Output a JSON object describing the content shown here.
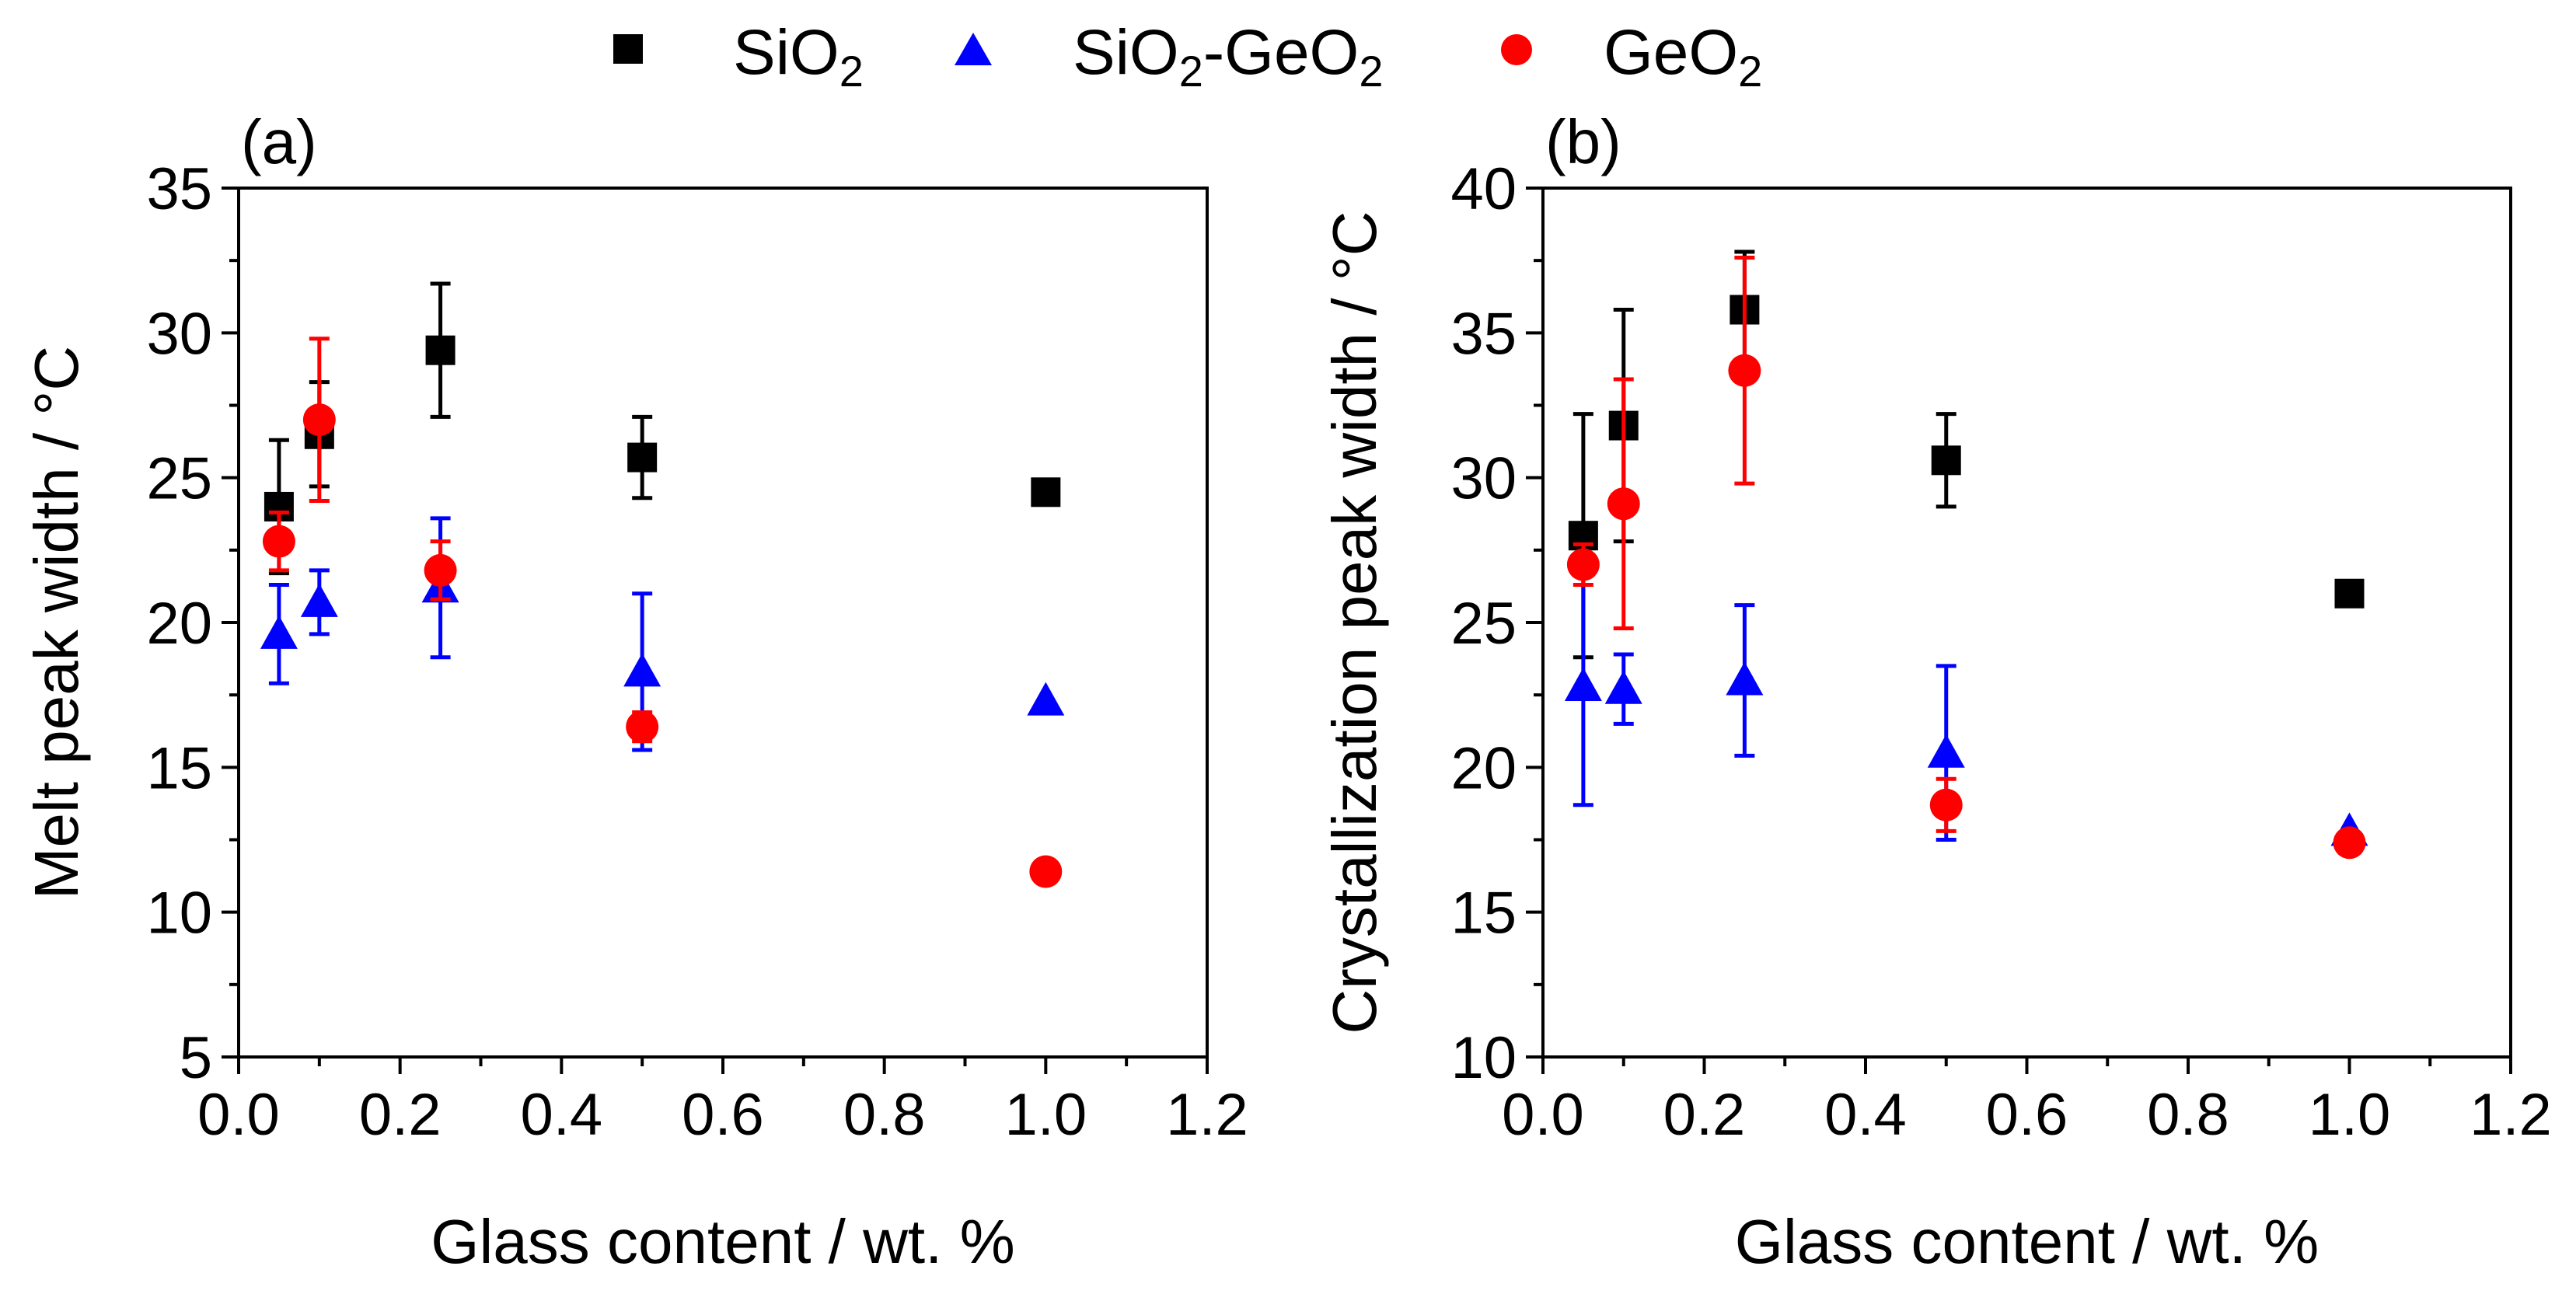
{
  "legend": {
    "entries": [
      {
        "key": "sio2",
        "base": "SiO",
        "sub": "2",
        "mid": "",
        "base2": "",
        "sub2": "",
        "marker": "square",
        "color": "#000000"
      },
      {
        "key": "mixed",
        "base": "SiO",
        "sub": "2",
        "mid": "-GeO",
        "base2": "",
        "sub2": "2",
        "marker": "triangle",
        "color": "#0000ff"
      },
      {
        "key": "geo2",
        "base": "GeO",
        "sub": "2",
        "mid": "",
        "base2": "",
        "sub2": "",
        "marker": "circle",
        "color": "#ff0000"
      }
    ]
  },
  "chart_data": [
    {
      "type": "scatter",
      "panel_label": "(a)",
      "xlabel": "Glass content / wt. %",
      "ylabel": "Melt peak width / °C",
      "xlim": [
        0.0,
        1.2
      ],
      "ylim": [
        5,
        35
      ],
      "xticks": [
        "0.0",
        "0.2",
        "0.4",
        "0.6",
        "0.8",
        "1.0",
        "1.2"
      ],
      "yticks": [
        "5",
        "10",
        "15",
        "20",
        "25",
        "30",
        "35"
      ],
      "series": [
        {
          "name": "SiO2",
          "marker": "square",
          "color": "#000000",
          "x": [
            0.05,
            0.1,
            0.25,
            0.5,
            1.0
          ],
          "y": [
            24.0,
            26.5,
            29.4,
            25.7,
            24.5
          ],
          "err": [
            2.3,
            1.8,
            2.3,
            1.4,
            0
          ]
        },
        {
          "name": "SiO2-GeO2",
          "marker": "triangle",
          "color": "#0000ff",
          "x": [
            0.05,
            0.1,
            0.25,
            0.5,
            1.0
          ],
          "y": [
            19.6,
            20.7,
            21.2,
            18.3,
            17.3
          ],
          "err": [
            1.7,
            1.1,
            2.4,
            2.7,
            0
          ]
        },
        {
          "name": "GeO2",
          "marker": "circle",
          "color": "#ff0000",
          "x": [
            0.05,
            0.1,
            0.25,
            0.5,
            1.0
          ],
          "y": [
            22.8,
            27.0,
            21.8,
            16.4,
            11.4
          ],
          "err": [
            1.0,
            2.8,
            1.0,
            0.5,
            0
          ]
        }
      ]
    },
    {
      "type": "scatter",
      "panel_label": "(b)",
      "xlabel": "Glass content / wt. %",
      "ylabel": "Crystallization peak width / °C",
      "xlim": [
        0.0,
        1.2
      ],
      "ylim": [
        10,
        40
      ],
      "xticks": [
        "0.0",
        "0.2",
        "0.4",
        "0.6",
        "0.8",
        "1.0",
        "1.2"
      ],
      "yticks": [
        "10",
        "15",
        "20",
        "25",
        "30",
        "35",
        "40"
      ],
      "series": [
        {
          "name": "SiO2",
          "marker": "square",
          "color": "#000000",
          "x": [
            0.05,
            0.1,
            0.25,
            0.5,
            1.0
          ],
          "y": [
            28.0,
            31.8,
            35.8,
            30.6,
            26.0
          ],
          "err": [
            4.2,
            4.0,
            2.0,
            1.6,
            0
          ]
        },
        {
          "name": "SiO2-GeO2",
          "marker": "triangle",
          "color": "#0000ff",
          "x": [
            0.05,
            0.1,
            0.25,
            0.5,
            1.0
          ],
          "y": [
            22.8,
            22.7,
            23.0,
            20.5,
            17.8
          ],
          "err": [
            4.1,
            1.2,
            2.6,
            3.0,
            0
          ]
        },
        {
          "name": "GeO2",
          "marker": "circle",
          "color": "#ff0000",
          "x": [
            0.05,
            0.1,
            0.25,
            0.5,
            1.0
          ],
          "y": [
            27.0,
            29.1,
            33.7,
            18.7,
            17.4
          ],
          "err": [
            0.7,
            4.3,
            3.9,
            0.9,
            0
          ]
        }
      ]
    }
  ]
}
